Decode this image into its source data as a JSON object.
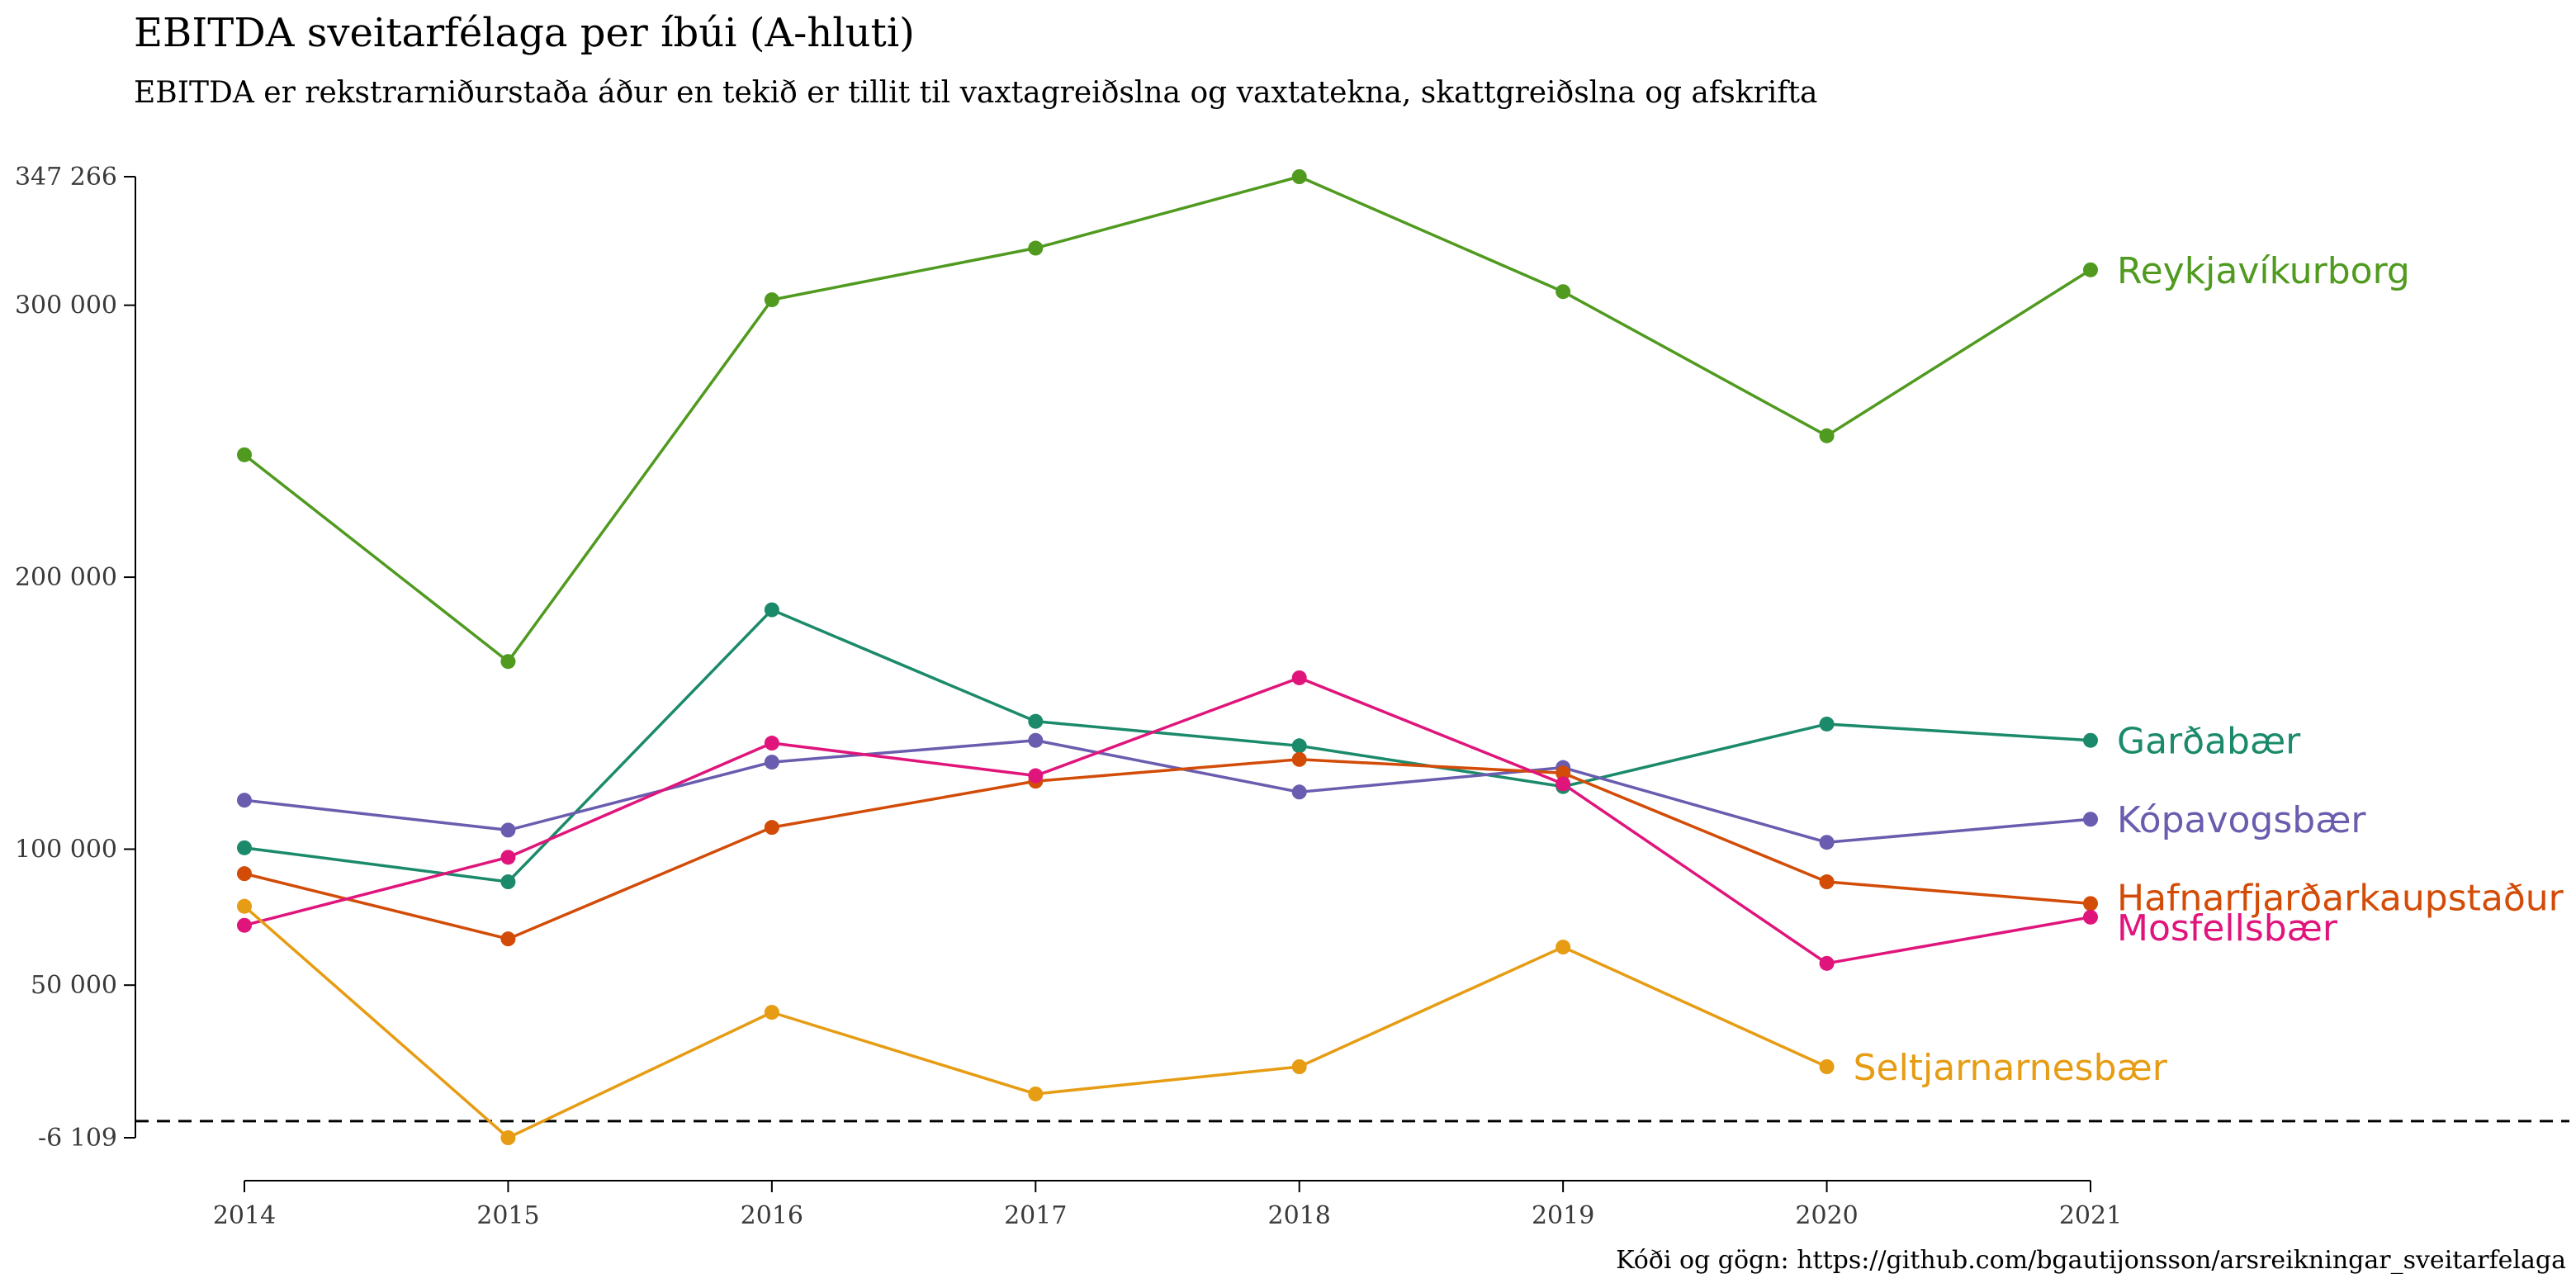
{
  "chart_data": {
    "type": "line",
    "title": "EBITDA sveitarfélaga per íbúi (A-hluti)",
    "subtitle": "EBITDA er rekstrarniðurstaða áður en tekið er tillit til vaxtagreiðslna og vaxtatekna, skattgreiðslna og afskrifta",
    "caption": "Kóði og gögn: https://github.com/bgautijonsson/arsreikningar_sveitarfelaga",
    "xlabel": "",
    "ylabel": "",
    "x": [
      2014,
      2015,
      2016,
      2017,
      2018,
      2019,
      2020,
      2021
    ],
    "ylim": [
      -6109,
      347266
    ],
    "y_ticks": [
      {
        "value": 347266,
        "label": "347 266"
      },
      {
        "value": 300000,
        "label": "300 000"
      },
      {
        "value": 200000,
        "label": "200 000"
      },
      {
        "value": 100000,
        "label": "100 000"
      },
      {
        "value": 50000,
        "label": "50 000"
      },
      {
        "value": -6109,
        "label": "-6 109"
      }
    ],
    "reference_line": {
      "value": 0,
      "style": "dashed"
    },
    "series": [
      {
        "name": "Reykjavíkurborg",
        "color": "#4f9a1f",
        "values": [
          245000,
          169000,
          302000,
          321000,
          347266,
          305000,
          252000,
          313000
        ]
      },
      {
        "name": "Garðabær",
        "color": "#1b8a6b",
        "values": [
          100500,
          88000,
          188000,
          147000,
          138000,
          123000,
          146000,
          140000
        ]
      },
      {
        "name": "Kópavogsbær",
        "color": "#6a5cae",
        "values": [
          118000,
          107000,
          132000,
          140000,
          121000,
          130000,
          102500,
          111000
        ]
      },
      {
        "name": "Hafnarfjarðarkaupstaður",
        "color": "#d24c08",
        "values": [
          91000,
          67000,
          108000,
          125000,
          133000,
          128000,
          88000,
          80000
        ]
      },
      {
        "name": "Mosfellsbær",
        "color": "#e0157c",
        "values": [
          72000,
          97000,
          139000,
          127000,
          163000,
          124000,
          58000,
          75000
        ]
      },
      {
        "name": "Seltjarnarnesbær",
        "color": "#e69c13",
        "values": [
          79000,
          -6109,
          40000,
          10000,
          20000,
          64000,
          20000,
          null
        ]
      }
    ]
  }
}
